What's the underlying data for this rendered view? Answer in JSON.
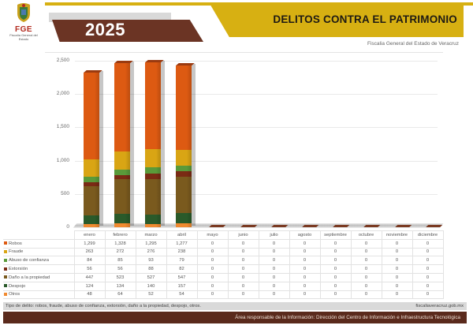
{
  "header": {
    "logo_text": "FGE",
    "logo_subtext": "Fiscalía General del Estado",
    "year": "2025",
    "title": "DELITOS CONTRA EL PATRIMONIO",
    "subtitle": "Fiscalia General del Estado de Veracruz"
  },
  "colors": {
    "brand_yellow": "#d7b012",
    "brand_brown": "#6b3424",
    "footer_brown": "#5a2a1c",
    "footer_gray": "#d9d9d9"
  },
  "chart_data": {
    "type": "bar",
    "stacked": true,
    "three_d": true,
    "title": "DELITOS CONTRA EL PATRIMONIO",
    "xlabel": "",
    "ylabel": "",
    "ylim": [
      0,
      2500
    ],
    "yticks": [
      "0",
      "500",
      "1,000",
      "1,500",
      "2,000",
      "2,500"
    ],
    "grid": true,
    "legend_position": "table-left",
    "categories": [
      "enero",
      "febrero",
      "marzo",
      "abril",
      "mayo",
      "junio",
      "julio",
      "agosto",
      "septiembre",
      "octubre",
      "noviembre",
      "diciembre"
    ],
    "series": [
      {
        "name": "Robos",
        "color": "#dd5a12",
        "values": [
          1299,
          1328,
          1295,
          1277,
          0,
          0,
          0,
          0,
          0,
          0,
          0,
          0
        ]
      },
      {
        "name": "Fraude",
        "color": "#d9a514",
        "values": [
          263,
          272,
          276,
          238,
          0,
          0,
          0,
          0,
          0,
          0,
          0,
          0
        ]
      },
      {
        "name": "Abuso de confianza",
        "color": "#5a9a3a",
        "values": [
          84,
          85,
          93,
          79,
          0,
          0,
          0,
          0,
          0,
          0,
          0,
          0
        ]
      },
      {
        "name": "Extorsión",
        "color": "#7a2a14",
        "values": [
          56,
          56,
          88,
          82,
          0,
          0,
          0,
          0,
          0,
          0,
          0,
          0
        ]
      },
      {
        "name": "Daño a la propiedad",
        "color": "#7a5a1e",
        "values": [
          447,
          523,
          527,
          547,
          0,
          0,
          0,
          0,
          0,
          0,
          0,
          0
        ]
      },
      {
        "name": "Despojo",
        "color": "#2a5a2a",
        "values": [
          124,
          134,
          140,
          157,
          0,
          0,
          0,
          0,
          0,
          0,
          0,
          0
        ]
      },
      {
        "name": "Otros",
        "color": "#f08a30",
        "values": [
          48,
          64,
          52,
          54,
          0,
          0,
          0,
          0,
          0,
          0,
          0,
          0
        ]
      }
    ]
  },
  "table": {
    "rows_display": [
      [
        "1,299",
        "1,328",
        "1,295",
        "1,277",
        "0",
        "0",
        "0",
        "0",
        "0",
        "0",
        "0",
        "0"
      ],
      [
        "263",
        "272",
        "276",
        "238",
        "0",
        "0",
        "0",
        "0",
        "0",
        "0",
        "0",
        "0"
      ],
      [
        "84",
        "85",
        "93",
        "79",
        "0",
        "0",
        "0",
        "0",
        "0",
        "0",
        "0",
        "0"
      ],
      [
        "56",
        "56",
        "88",
        "82",
        "0",
        "0",
        "0",
        "0",
        "0",
        "0",
        "0",
        "0"
      ],
      [
        "447",
        "523",
        "527",
        "547",
        "0",
        "0",
        "0",
        "0",
        "0",
        "0",
        "0",
        "0"
      ],
      [
        "124",
        "134",
        "140",
        "157",
        "0",
        "0",
        "0",
        "0",
        "0",
        "0",
        "0",
        "0"
      ],
      [
        "48",
        "64",
        "52",
        "54",
        "0",
        "0",
        "0",
        "0",
        "0",
        "0",
        "0",
        "0"
      ]
    ]
  },
  "footer": {
    "note": "Tipo de delito: robos, fraude, abuso de confianza, extorsión, daño a la propiedad, despojo,  otros.",
    "website": "fiscaliaveracruz.gob.mx",
    "responsible": "Área responsable de la Información: Dirección del Centro de Información e Infraestructura Tecnológica"
  }
}
